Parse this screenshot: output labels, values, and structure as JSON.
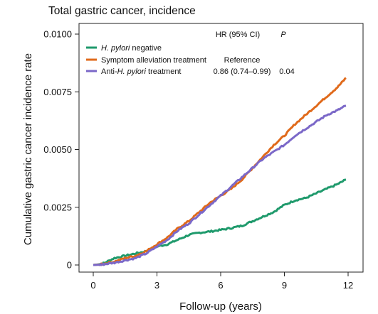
{
  "chart_data": {
    "type": "line",
    "title": "Total gastric cancer, incidence",
    "xlabel": "Follow-up (years)",
    "ylabel": "Cumulative gastric cancer incidence rate",
    "xlim": [
      0,
      12
    ],
    "ylim": [
      0,
      0.01
    ],
    "x_ticks": [
      0,
      3,
      6,
      9,
      12
    ],
    "x_tick_labels": [
      "0",
      "3",
      "6",
      "9",
      "12"
    ],
    "y_ticks": [
      0,
      0.0025,
      0.005,
      0.0075,
      0.01
    ],
    "y_tick_labels": [
      "0",
      "0.0025",
      "0.0050",
      "0.0075",
      "0.0100"
    ],
    "grid": false,
    "legend_position": "top-left",
    "table_header": {
      "hr": "HR (95% CI)",
      "p": "P"
    },
    "series": [
      {
        "name": "H. pylori negative",
        "legend": {
          "pre": "",
          "italic": "H. pylori",
          "post": " negative"
        },
        "color": "#1f9a6c",
        "hr": "",
        "p": "",
        "x": [
          0.0,
          0.3,
          0.5,
          1.0,
          1.5,
          2.0,
          2.5,
          3.0,
          3.5,
          4.0,
          4.5,
          5.0,
          5.5,
          6.0,
          6.5,
          7.0,
          7.5,
          8.0,
          8.5,
          9.0,
          9.5,
          10.0,
          10.5,
          11.0,
          11.5,
          11.9
        ],
        "y": [
          0.0,
          3e-05,
          8e-05,
          0.0003,
          0.0004,
          0.0005,
          0.0006,
          0.0008,
          0.0009,
          0.0011,
          0.0013,
          0.0014,
          0.00145,
          0.00152,
          0.0016,
          0.0017,
          0.0019,
          0.0021,
          0.0023,
          0.0026,
          0.0028,
          0.0029,
          0.0031,
          0.0033,
          0.0035,
          0.0037
        ]
      },
      {
        "name": "Symptom alleviation treatment",
        "legend": {
          "pre": "Symptom alleviation treatment",
          "italic": "",
          "post": ""
        },
        "color": "#e06a1b",
        "hr": "Reference",
        "p": "",
        "x": [
          0.0,
          0.3,
          0.5,
          1.0,
          1.5,
          2.0,
          2.5,
          3.0,
          3.5,
          4.0,
          4.5,
          5.0,
          5.5,
          6.0,
          6.5,
          7.0,
          7.5,
          8.0,
          8.5,
          9.0,
          9.5,
          10.0,
          10.5,
          11.0,
          11.5,
          11.9
        ],
        "y": [
          0.0,
          2e-05,
          5e-05,
          0.00015,
          0.0003,
          0.0004,
          0.0006,
          0.0009,
          0.0012,
          0.0016,
          0.0019,
          0.0023,
          0.0027,
          0.003,
          0.0033,
          0.0037,
          0.0042,
          0.0047,
          0.0052,
          0.0056,
          0.0061,
          0.0065,
          0.0069,
          0.0073,
          0.0077,
          0.0081
        ]
      },
      {
        "name": "Anti-H. pylori treatment",
        "legend": {
          "pre": "Anti-",
          "italic": "H. pylori",
          "post": " treatment"
        },
        "color": "#7b68c8",
        "hr": "0.86 (0.74–0.99)",
        "p": "0.04",
        "x": [
          0.0,
          0.3,
          0.5,
          1.0,
          1.5,
          2.0,
          2.5,
          3.0,
          3.5,
          4.0,
          4.5,
          5.0,
          5.5,
          6.0,
          6.5,
          7.0,
          7.5,
          8.0,
          8.5,
          9.0,
          9.5,
          10.0,
          10.5,
          11.0,
          11.5,
          11.9
        ],
        "y": [
          0.0,
          1e-05,
          3e-05,
          0.0001,
          0.0002,
          0.0003,
          0.0005,
          0.0008,
          0.0011,
          0.0015,
          0.0018,
          0.0022,
          0.0026,
          0.003,
          0.0034,
          0.0038,
          0.0042,
          0.0046,
          0.0049,
          0.0052,
          0.0056,
          0.0059,
          0.0062,
          0.0065,
          0.0067,
          0.0069
        ]
      }
    ]
  }
}
